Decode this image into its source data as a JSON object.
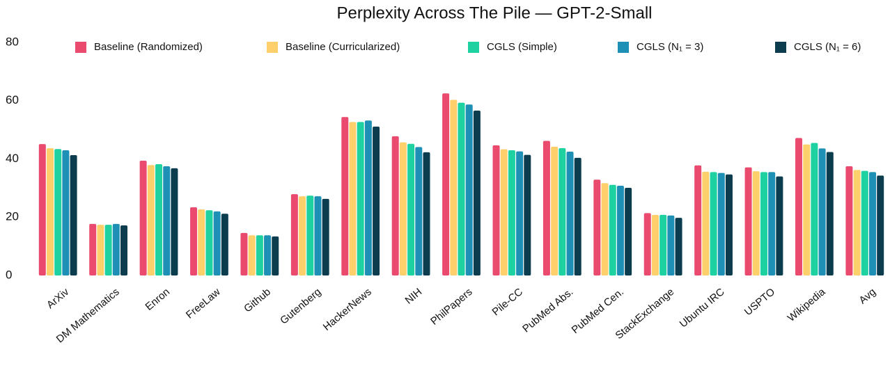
{
  "chart_data": {
    "type": "bar",
    "title": "Perplexity Across The Pile — GPT-2-Small",
    "categories": [
      "ArXiv",
      "DM Mathematics",
      "Enron",
      "FreeLaw",
      "Github",
      "Gutenberg",
      "HackerNews",
      "NIH",
      "PhilPapers",
      "Pile-CC",
      "PubMed Abs.",
      "PubMed Cen.",
      "StackExchange",
      "Ubuntu IRC",
      "USPTO",
      "Wikipedia",
      "Avg"
    ],
    "series": [
      {
        "name": "Baseline (Randomized)",
        "color": "#e94a6e",
        "values": [
          45.1,
          17.7,
          39.4,
          23.4,
          14.6,
          27.9,
          54.4,
          47.8,
          62.5,
          44.7,
          46.2,
          32.9,
          21.4,
          37.8,
          37.1,
          47.2,
          37.5
        ]
      },
      {
        "name": "Baseline (Curricularized)",
        "color": "#fdd06b",
        "values": [
          43.7,
          17.4,
          37.9,
          22.7,
          13.8,
          27.2,
          52.7,
          45.7,
          60.3,
          43.3,
          44.2,
          31.7,
          20.8,
          35.6,
          35.8,
          45.0,
          36.2
        ]
      },
      {
        "name": "CGLS (Simple)",
        "color": "#1dd1a1",
        "values": [
          43.4,
          17.4,
          38.2,
          22.4,
          13.8,
          27.4,
          52.7,
          45.2,
          59.3,
          43.0,
          43.7,
          31.1,
          20.8,
          35.5,
          35.5,
          45.5,
          35.9
        ]
      },
      {
        "name": "CGLS (N₁ = 3)",
        "color": "#1e8fb5",
        "values": [
          43.0,
          17.7,
          37.5,
          22.0,
          13.8,
          27.2,
          53.2,
          44.1,
          58.7,
          42.6,
          42.5,
          30.8,
          20.6,
          35.2,
          35.5,
          43.6,
          35.5
        ]
      },
      {
        "name": "CGLS (N₁ = 6)",
        "color": "#0b3d4f",
        "values": [
          41.3,
          17.2,
          36.8,
          21.2,
          13.4,
          26.3,
          51.1,
          42.3,
          56.6,
          41.4,
          40.4,
          30.1,
          19.8,
          34.7,
          34.0,
          42.4,
          34.3
        ]
      }
    ],
    "ylim": [
      0,
      80
    ],
    "yticks": [
      0,
      20,
      40,
      60,
      80
    ],
    "grid": false
  }
}
